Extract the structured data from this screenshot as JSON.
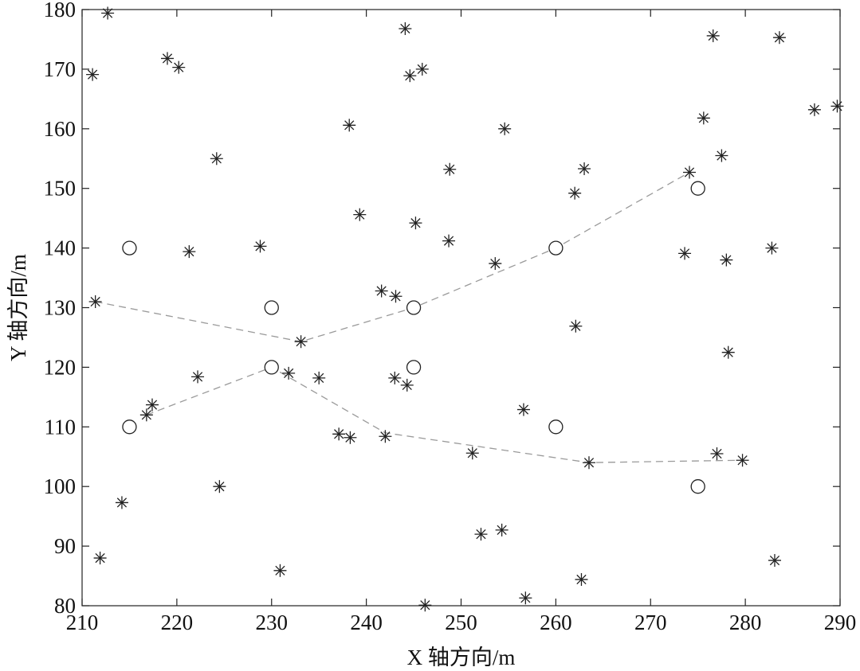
{
  "chart_data": {
    "type": "scatter",
    "xlabel": "X 轴方向/m",
    "ylabel": "Y 轴方向/m",
    "xlim": [
      210,
      290
    ],
    "ylim": [
      80,
      180
    ],
    "xticks": [
      210,
      220,
      230,
      240,
      250,
      260,
      270,
      280,
      290
    ],
    "yticks": [
      80,
      90,
      100,
      110,
      120,
      130,
      140,
      150,
      160,
      170,
      180
    ],
    "grid": false,
    "series": [
      {
        "marker": "asterisk",
        "points": [
          [
            212.7,
            179.4
          ],
          [
            211.1,
            169.1
          ],
          [
            219.0,
            171.8
          ],
          [
            220.2,
            170.3
          ],
          [
            244.1,
            176.8
          ],
          [
            244.6,
            168.9
          ],
          [
            245.9,
            170.0
          ],
          [
            276.6,
            175.6
          ],
          [
            283.6,
            175.3
          ],
          [
            238.2,
            160.6
          ],
          [
            254.6,
            160.0
          ],
          [
            275.6,
            161.8
          ],
          [
            287.3,
            163.2
          ],
          [
            289.7,
            163.8
          ],
          [
            224.2,
            155.0
          ],
          [
            248.8,
            153.2
          ],
          [
            263.0,
            153.3
          ],
          [
            274.1,
            152.7
          ],
          [
            277.5,
            155.5
          ],
          [
            239.3,
            145.6
          ],
          [
            245.2,
            144.2
          ],
          [
            262.0,
            149.2
          ],
          [
            221.3,
            139.4
          ],
          [
            228.8,
            140.3
          ],
          [
            248.7,
            141.2
          ],
          [
            253.6,
            137.4
          ],
          [
            273.6,
            139.1
          ],
          [
            278.0,
            138.0
          ],
          [
            282.8,
            140.0
          ],
          [
            211.4,
            131.0
          ],
          [
            241.6,
            132.8
          ],
          [
            243.1,
            131.9
          ],
          [
            233.1,
            124.3
          ],
          [
            262.1,
            126.9
          ],
          [
            278.2,
            122.5
          ],
          [
            222.2,
            118.4
          ],
          [
            231.8,
            119.0
          ],
          [
            235.0,
            118.2
          ],
          [
            243.0,
            118.2
          ],
          [
            244.3,
            117.0
          ],
          [
            217.4,
            113.7
          ],
          [
            216.8,
            112.0
          ],
          [
            256.6,
            112.9
          ],
          [
            237.1,
            108.8
          ],
          [
            238.3,
            108.2
          ],
          [
            242.0,
            108.4
          ],
          [
            251.2,
            105.6
          ],
          [
            263.5,
            104.0
          ],
          [
            277.0,
            105.5
          ],
          [
            279.7,
            104.4
          ],
          [
            214.2,
            97.3
          ],
          [
            224.5,
            100.0
          ],
          [
            252.1,
            92.0
          ],
          [
            254.3,
            92.7
          ],
          [
            211.9,
            88.0
          ],
          [
            230.9,
            85.9
          ],
          [
            283.1,
            87.6
          ],
          [
            256.8,
            81.3
          ],
          [
            262.7,
            84.4
          ],
          [
            246.2,
            80.1
          ]
        ]
      },
      {
        "marker": "circle",
        "points": [
          [
            215,
            140
          ],
          [
            230,
            130
          ],
          [
            245,
            130
          ],
          [
            260,
            140
          ],
          [
            275,
            150
          ],
          [
            230,
            120
          ],
          [
            245,
            120
          ],
          [
            215,
            110
          ],
          [
            260,
            110
          ],
          [
            275,
            100
          ]
        ]
      }
    ],
    "paths": [
      [
        [
          211.4,
          131.0
        ],
        [
          233.1,
          124.3
        ],
        [
          245.0,
          130.0
        ],
        [
          260.0,
          140.0
        ],
        [
          274.1,
          152.7
        ]
      ],
      [
        [
          216.8,
          112.0
        ],
        [
          230.0,
          120.0
        ],
        [
          242.0,
          109.0
        ],
        [
          263.5,
          104.0
        ],
        [
          279.7,
          104.4
        ]
      ]
    ]
  }
}
